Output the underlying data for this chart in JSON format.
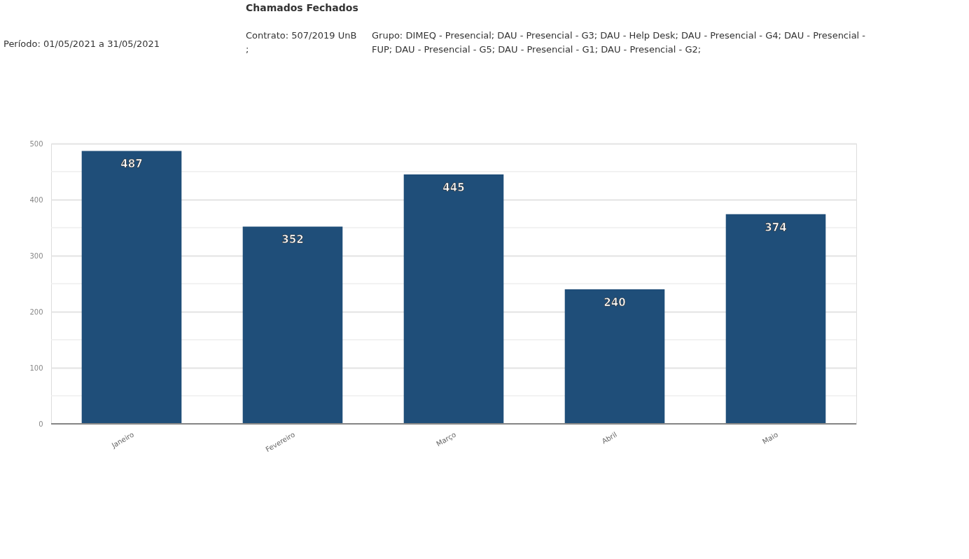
{
  "chart_data": {
    "type": "bar",
    "title": "Chamados Fechados",
    "annotations": [
      "Período: 01/05/2021 a 31/05/2021",
      "Contrato: 507/2019 UnB ;",
      "Grupo: DIMEQ - Presencial; DAU - Presencial - G3; DAU - Help Desk; DAU - Presencial - G4; DAU - Presencial - FUP; DAU - Presencial - G5; DAU - Presencial - G1; DAU - Presencial - G2;"
    ],
    "categories": [
      "Janeiro",
      "Fevereiro",
      "Março",
      "Abril",
      "Maio"
    ],
    "values": [
      487,
      352,
      445,
      240,
      374
    ],
    "color": "#1f4e79",
    "ylim": [
      0,
      500
    ],
    "yticks": [
      0,
      {
        "value": 50,
        "label": null
      },
      100,
      {
        "value": 150,
        "label": null
      },
      200,
      {
        "value": 250,
        "label": null
      },
      300,
      {
        "value": 350,
        "label": null
      },
      400,
      {
        "value": 450,
        "label": null
      },
      500
    ],
    "grid": "y",
    "data_labels": true
  }
}
